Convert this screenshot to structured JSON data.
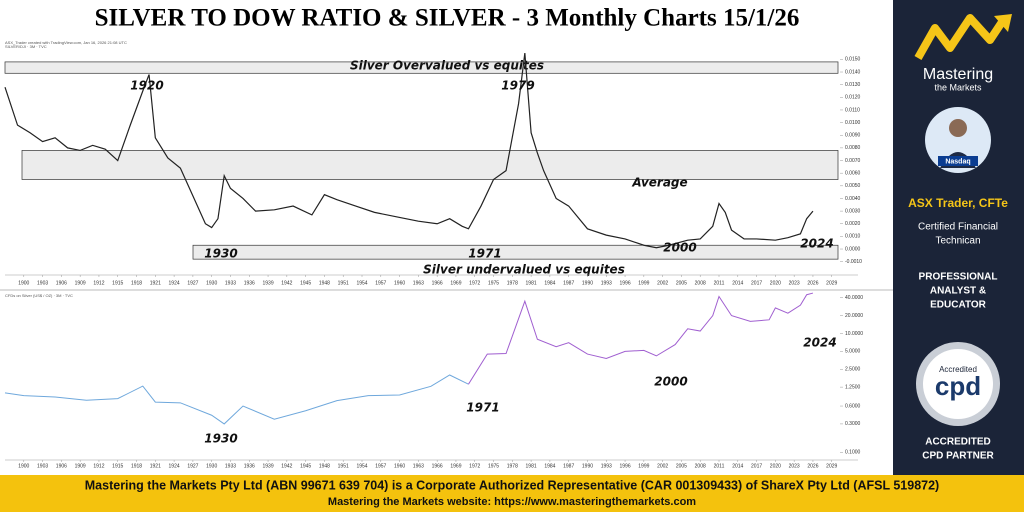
{
  "header": {
    "title": "SILVER TO DOW RATIO & SILVER - 3 Monthly Charts 15/1/26",
    "credit": "ASX_Trader created with TradingView.com, Jan 16, 2026 21:08 UTC"
  },
  "chart_data": [
    {
      "type": "line",
      "subtitle": "SILVER/DJI · 3M · TVC",
      "x": [
        1897,
        1899,
        1901,
        1903,
        1905,
        1907,
        1909,
        1911,
        1913,
        1915,
        1917,
        1919,
        1920,
        1921,
        1923,
        1925,
        1927,
        1929,
        1930,
        1931,
        1932,
        1933,
        1935,
        1937,
        1940,
        1943,
        1946,
        1948,
        1950,
        1953,
        1956,
        1960,
        1963,
        1966,
        1968,
        1970,
        1971,
        1973,
        1975,
        1977,
        1979,
        1980,
        1981,
        1982,
        1983,
        1985,
        1987,
        1990,
        1993,
        1996,
        1999,
        2001,
        2003,
        2006,
        2008,
        2010,
        2011,
        2012,
        2013,
        2015,
        2017,
        2020,
        2022,
        2024,
        2025,
        2026
      ],
      "series": [
        {
          "color": "#222222",
          "values": [
            0.0128,
            0.0098,
            0.0092,
            0.0085,
            0.0088,
            0.008,
            0.0078,
            0.0082,
            0.0079,
            0.007,
            0.0098,
            0.0125,
            0.0138,
            0.0088,
            0.0072,
            0.0064,
            0.0042,
            0.002,
            0.0017,
            0.0024,
            0.0058,
            0.0048,
            0.004,
            0.003,
            0.0031,
            0.0034,
            0.0027,
            0.0043,
            0.0039,
            0.0034,
            0.0029,
            0.0025,
            0.0022,
            0.002,
            0.0024,
            0.0018,
            0.0016,
            0.0034,
            0.0055,
            0.0062,
            0.0115,
            0.0155,
            0.0092,
            0.0076,
            0.0062,
            0.004,
            0.0034,
            0.0016,
            0.0011,
            0.0008,
            0.0003,
            0.0001,
            0.0003,
            0.0007,
            0.0008,
            0.0018,
            0.0036,
            0.0029,
            0.0015,
            0.0008,
            0.0008,
            0.0007,
            0.0009,
            0.0012,
            0.0024,
            0.003
          ]
        }
      ],
      "xlim": [
        1897,
        2030
      ],
      "xticks": [
        1900,
        1903,
        1906,
        1909,
        1912,
        1915,
        1918,
        1921,
        1924,
        1927,
        1930,
        1933,
        1936,
        1939,
        1942,
        1945,
        1948,
        1951,
        1954,
        1957,
        1960,
        1963,
        1966,
        1969,
        1972,
        1975,
        1978,
        1981,
        1984,
        1987,
        1990,
        1993,
        1996,
        1999,
        2002,
        2005,
        2008,
        2011,
        2014,
        2017,
        2020,
        2023,
        2026,
        2029
      ],
      "ylim": [
        -0.0015,
        0.0159
      ],
      "yticks": [
        {
          "value": 0.015,
          "label": "0.0150"
        },
        {
          "value": 0.014,
          "label": "0.0140"
        },
        {
          "value": 0.013,
          "label": "0.0130"
        },
        {
          "value": 0.012,
          "label": "0.0120"
        },
        {
          "value": 0.011,
          "label": "0.0110"
        },
        {
          "value": 0.01,
          "label": "0.0100"
        },
        {
          "value": 0.009,
          "label": "0.0090"
        },
        {
          "value": 0.008,
          "label": "0.0080"
        },
        {
          "value": 0.007,
          "label": "0.0070"
        },
        {
          "value": 0.006,
          "label": "0.0060"
        },
        {
          "value": 0.005,
          "label": "0.0050"
        },
        {
          "value": 0.004,
          "label": "0.0040"
        },
        {
          "value": 0.003,
          "label": "0.0030"
        },
        {
          "value": 0.002,
          "label": "0.0020"
        },
        {
          "value": 0.001,
          "label": "0.0010"
        },
        {
          "value": 0,
          "label": "0.0000"
        },
        {
          "value": -0.001,
          "label": "-0.0010"
        }
      ],
      "zones": [
        {
          "label": "Silver Overvalued vs equites",
          "range": [
            0.0139,
            0.0148
          ]
        },
        {
          "label": "Average",
          "range": [
            0.0055,
            0.0078
          ]
        },
        {
          "label": "Silver undervalued vs equites",
          "range": [
            -0.0008,
            0.0003
          ]
        }
      ],
      "annotations": [
        "1920",
        "1979",
        "1930",
        "1971",
        "2000",
        "2024"
      ]
    },
    {
      "type": "line",
      "subtitle": "CFDs on Silver (US$ / OZ) · 3M · TVC",
      "log_scale": true,
      "x": [
        1897,
        1900,
        1905,
        1910,
        1915,
        1919,
        1921,
        1925,
        1930,
        1932,
        1935,
        1940,
        1945,
        1950,
        1955,
        1960,
        1965,
        1968,
        1971,
        1974,
        1977,
        1980,
        1982,
        1985,
        1987,
        1990,
        1993,
        1996,
        1999,
        2001,
        2004,
        2006,
        2008,
        2010,
        2011,
        2013,
        2016,
        2019,
        2020,
        2022,
        2024,
        2025,
        2026
      ],
      "series": [
        {
          "color": "#6fa8dc",
          "values": [
            1.0,
            0.9,
            0.85,
            0.75,
            0.8,
            1.3,
            0.7,
            0.68,
            0.42,
            0.3,
            0.6,
            0.36,
            0.5,
            0.74,
            0.9,
            0.92,
            1.29,
            2.0,
            1.4,
            null,
            null,
            null,
            null,
            null,
            null,
            null,
            null,
            null,
            null,
            null,
            null,
            null,
            null,
            null,
            null,
            null,
            null,
            null,
            null,
            null,
            null,
            null,
            null
          ]
        },
        {
          "color": "#a05fd0",
          "values": [
            null,
            null,
            null,
            null,
            null,
            null,
            null,
            null,
            null,
            null,
            null,
            null,
            null,
            null,
            null,
            null,
            null,
            null,
            1.4,
            4.5,
            4.6,
            35,
            8,
            6,
            7,
            4.5,
            3.8,
            5,
            5.2,
            4.2,
            6.5,
            12,
            11,
            20,
            42,
            20,
            16,
            17,
            27,
            22,
            30,
            45,
            48
          ]
        }
      ],
      "xlim": [
        1897,
        2030
      ],
      "xticks": [
        1900,
        1903,
        1906,
        1909,
        1912,
        1915,
        1918,
        1921,
        1924,
        1927,
        1930,
        1933,
        1936,
        1939,
        1942,
        1945,
        1948,
        1951,
        1954,
        1957,
        1960,
        1963,
        1966,
        1969,
        1972,
        1975,
        1978,
        1981,
        1984,
        1987,
        1990,
        1993,
        1996,
        1999,
        2002,
        2005,
        2008,
        2011,
        2014,
        2017,
        2020,
        2023,
        2026,
        2029
      ],
      "ylim": [
        0.08,
        50
      ],
      "yticks": [
        {
          "value": 40,
          "label": "40.0000"
        },
        {
          "value": 20,
          "label": "20.0000"
        },
        {
          "value": 10,
          "label": "10.0000"
        },
        {
          "value": 5,
          "label": "5.0000"
        },
        {
          "value": 2.5,
          "label": "2.5000"
        },
        {
          "value": 1.25,
          "label": "1.2500"
        },
        {
          "value": 0.6,
          "label": "0.6000"
        },
        {
          "value": 0.3,
          "label": "0.3000"
        },
        {
          "value": 0.1,
          "label": "0.1000"
        }
      ],
      "annotations": [
        "2024",
        "2000",
        "1971",
        "1930"
      ]
    }
  ],
  "sidebar": {
    "logo_top": "Mastering",
    "logo_bottom": "the Markets",
    "badge": "Nasdaq",
    "name": "ASX Trader, CFTe",
    "role": [
      "Certified Financial",
      "Technican"
    ],
    "tagline": [
      "PROFESSIONAL",
      "ANALYST &",
      "EDUCATOR"
    ],
    "cpd_top": "Accredited",
    "cpd": "cpd",
    "partner": [
      "ACCREDITED",
      "CPD PARTNER"
    ]
  },
  "footer": {
    "line1": "Mastering the Markets Pty Ltd (ABN 99671 639 704) is a Corporate Authorized Representative (CAR 001309433) of ShareX Pty Ltd (AFSL 519872)",
    "line2": "Mastering the Markets website: https://www.masteringthemarkets.com"
  }
}
